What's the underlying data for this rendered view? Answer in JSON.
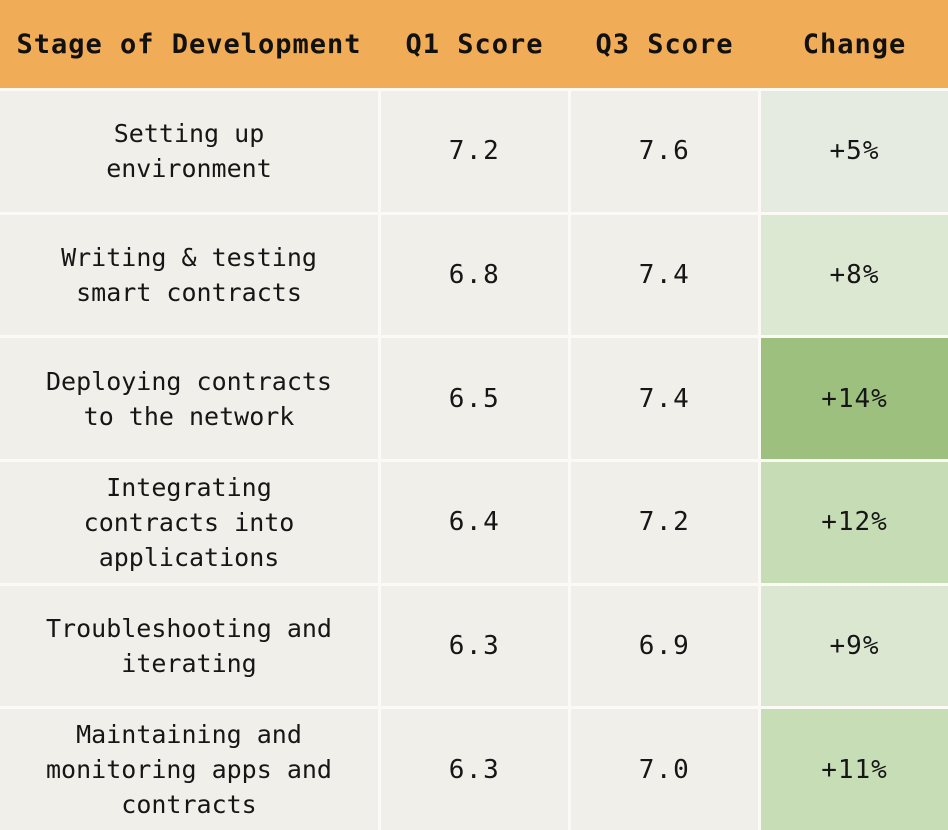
{
  "table": {
    "columns": [
      {
        "key": "stage",
        "label": "Stage of Development"
      },
      {
        "key": "q1",
        "label": "Q1 Score"
      },
      {
        "key": "q3",
        "label": "Q3 Score"
      },
      {
        "key": "change",
        "label": "Change"
      }
    ],
    "rows": [
      {
        "stage": "Setting up environment",
        "q1": "7.2",
        "q3": "7.6",
        "change": "+5%",
        "change_bg": "#e5ebe0"
      },
      {
        "stage": "Writing & testing smart contracts",
        "q1": "6.8",
        "q3": "7.4",
        "change": "+8%",
        "change_bg": "#dde8d3"
      },
      {
        "stage": "Deploying contracts to the network",
        "q1": "6.5",
        "q3": "7.4",
        "change": "+14%",
        "change_bg": "#9dc07f"
      },
      {
        "stage": "Integrating contracts into applications",
        "q1": "6.4",
        "q3": "7.2",
        "change": "+12%",
        "change_bg": "#c5dcb5"
      },
      {
        "stage": "Troubleshooting and iterating",
        "q1": "6.3",
        "q3": "6.9",
        "change": "+9%",
        "change_bg": "#dbe7d1"
      },
      {
        "stage": "Maintaining and monitoring apps and contracts",
        "q1": "6.3",
        "q3": "7.0",
        "change": "+11%",
        "change_bg": "#c6ddb6"
      }
    ],
    "colors": {
      "header_bg": "#f0ac56",
      "cell_bg": "#f0efea",
      "gap": "#fbfaf6",
      "text": "#161616"
    }
  },
  "chart_data": {
    "type": "table",
    "title": "",
    "columns": [
      "Stage of Development",
      "Q1 Score",
      "Q3 Score",
      "Change"
    ],
    "categories": [
      "Setting up environment",
      "Writing & testing smart contracts",
      "Deploying contracts to the network",
      "Integrating contracts into applications",
      "Troubleshooting and iterating",
      "Maintaining and monitoring apps and contracts"
    ],
    "series": [
      {
        "name": "Q1 Score",
        "values": [
          7.2,
          6.8,
          6.5,
          6.4,
          6.3,
          6.3
        ]
      },
      {
        "name": "Q3 Score",
        "values": [
          7.6,
          7.4,
          7.4,
          7.2,
          6.9,
          7.0
        ]
      },
      {
        "name": "Change",
        "values": [
          "+5%",
          "+8%",
          "+14%",
          "+12%",
          "+9%",
          "+11%"
        ]
      }
    ],
    "layout_hints": {
      "change_column_shading": "green intensity scales with percent change",
      "header_bg": "#f0ac56"
    }
  }
}
